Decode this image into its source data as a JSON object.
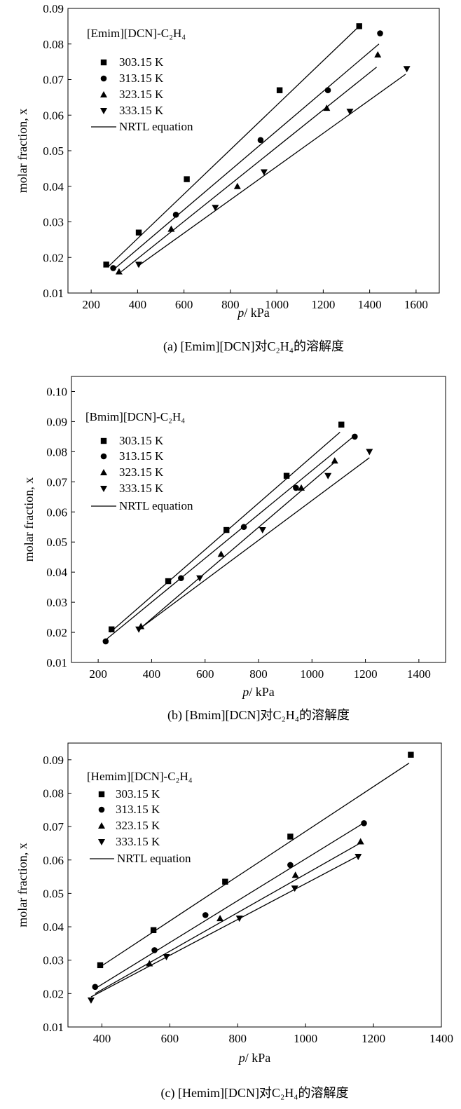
{
  "chart_data": [
    {
      "type": "scatter",
      "title": "[Emim][DCN]-C₂H₄",
      "caption": "(a) [Emim][DCN]对C₂H₄的溶解度",
      "xlabel_var": "p",
      "xlabel_unit": "/ kPa",
      "ylabel": "molar fraction, x",
      "xlim": [
        100,
        1700
      ],
      "ylim": [
        0.01,
        0.09
      ],
      "xticks": [
        200,
        400,
        600,
        800,
        1000,
        1200,
        1400,
        1600
      ],
      "yticks": [
        0.01,
        0.02,
        0.03,
        0.04,
        0.05,
        0.06,
        0.07,
        0.08,
        0.09
      ],
      "grid": false,
      "legend_position": "top-left",
      "series": [
        {
          "name": "303.15 K",
          "marker": "square",
          "x": [
            265,
            405,
            612,
            1012,
            1355
          ],
          "y": [
            0.018,
            0.027,
            0.042,
            0.067,
            0.085
          ]
        },
        {
          "name": "313.15 K",
          "marker": "circle",
          "x": [
            295,
            565,
            930,
            1220,
            1445
          ],
          "y": [
            0.017,
            0.032,
            0.053,
            0.067,
            0.083
          ]
        },
        {
          "name": "323.15 K",
          "marker": "triangle-up",
          "x": [
            320,
            545,
            830,
            1215,
            1435
          ],
          "y": [
            0.016,
            0.028,
            0.04,
            0.062,
            0.077
          ]
        },
        {
          "name": "333.15 K",
          "marker": "triangle-down",
          "x": [
            405,
            735,
            945,
            1315,
            1560
          ],
          "y": [
            0.018,
            0.034,
            0.044,
            0.061,
            0.073
          ]
        }
      ],
      "fit_label": "NRTL equation",
      "fit_lines": [
        {
          "x": [
            275,
            1355
          ],
          "y": [
            0.0175,
            0.085
          ]
        },
        {
          "x": [
            295,
            1440
          ],
          "y": [
            0.0165,
            0.08
          ]
        },
        {
          "x": [
            330,
            1430
          ],
          "y": [
            0.016,
            0.0735
          ]
        },
        {
          "x": [
            400,
            1555
          ],
          "y": [
            0.0175,
            0.0715
          ]
        }
      ]
    },
    {
      "type": "scatter",
      "title": "[Bmim][DCN]-C₂H₄",
      "caption": "(b) [Bmim][DCN]对C₂H₄的溶解度",
      "xlabel_var": "p",
      "xlabel_unit": "/ kPa",
      "ylabel": "molar fraction, x",
      "xlim": [
        100,
        1500
      ],
      "ylim": [
        0.01,
        0.105
      ],
      "xticks": [
        200,
        400,
        600,
        800,
        1000,
        1200,
        1400
      ],
      "yticks": [
        0.01,
        0.02,
        0.03,
        0.04,
        0.05,
        0.06,
        0.07,
        0.08,
        0.09,
        0.1
      ],
      "grid": false,
      "legend_position": "top-left",
      "series": [
        {
          "name": "303.15 K",
          "marker": "square",
          "x": [
            250,
            462,
            680,
            905,
            1110
          ],
          "y": [
            0.021,
            0.037,
            0.054,
            0.072,
            0.089
          ]
        },
        {
          "name": "313.15 K",
          "marker": "circle",
          "x": [
            228,
            510,
            745,
            940,
            1160
          ],
          "y": [
            0.017,
            0.038,
            0.055,
            0.068,
            0.085
          ]
        },
        {
          "name": "323.15 K",
          "marker": "triangle-up",
          "x": [
            360,
            660,
            960,
            1085
          ],
          "y": [
            0.022,
            0.046,
            0.068,
            0.077
          ]
        },
        {
          "name": "333.15 K",
          "marker": "triangle-down",
          "x": [
            352,
            580,
            815,
            1060,
            1215
          ],
          "y": [
            0.021,
            0.038,
            0.054,
            0.072,
            0.08
          ]
        }
      ],
      "fit_label": "NRTL equation",
      "fit_lines": [
        {
          "x": [
            245,
            1105
          ],
          "y": [
            0.02,
            0.0865
          ]
        },
        {
          "x": [
            228,
            1155
          ],
          "y": [
            0.0175,
            0.085
          ]
        },
        {
          "x": [
            360,
            1085
          ],
          "y": [
            0.0215,
            0.0765
          ]
        },
        {
          "x": [
            360,
            1215
          ],
          "y": [
            0.0215,
            0.078
          ]
        }
      ]
    },
    {
      "type": "scatter",
      "title": "[Hemim][DCN]-C₂H₄",
      "caption": "(c) [Hemim][DCN]对C₂H₄的溶解度",
      "xlabel_var": "p",
      "xlabel_unit": "/ kPa",
      "ylabel": "molar fraction, x",
      "xlim": [
        300,
        1400
      ],
      "ylim": [
        0.01,
        0.095
      ],
      "xticks": [
        400,
        600,
        800,
        1000,
        1200,
        1400
      ],
      "yticks": [
        0.01,
        0.02,
        0.03,
        0.04,
        0.05,
        0.06,
        0.07,
        0.08,
        0.09
      ],
      "grid": false,
      "legend_position": "top-left",
      "series": [
        {
          "name": "303.15 K",
          "marker": "square",
          "x": [
            395,
            552,
            763,
            955,
            1310
          ],
          "y": [
            0.0285,
            0.039,
            0.0535,
            0.067,
            0.0915
          ]
        },
        {
          "name": "313.15 K",
          "marker": "circle",
          "x": [
            380,
            555,
            705,
            955,
            1172
          ],
          "y": [
            0.022,
            0.033,
            0.0435,
            0.0585,
            0.071
          ]
        },
        {
          "name": "323.15 K",
          "marker": "triangle-up",
          "x": [
            540,
            748,
            970,
            1162
          ],
          "y": [
            0.029,
            0.0425,
            0.0555,
            0.0655
          ]
        },
        {
          "name": "333.15 K",
          "marker": "triangle-down",
          "x": [
            368,
            590,
            805,
            968,
            1155
          ],
          "y": [
            0.018,
            0.031,
            0.0425,
            0.0515,
            0.061
          ]
        }
      ],
      "fit_label": "NRTL equation",
      "fit_lines": [
        {
          "x": [
            395,
            1305
          ],
          "y": [
            0.028,
            0.089
          ]
        },
        {
          "x": [
            380,
            1170
          ],
          "y": [
            0.0215,
            0.071
          ]
        },
        {
          "x": [
            380,
            1160
          ],
          "y": [
            0.02,
            0.065
          ]
        },
        {
          "x": [
            368,
            1160
          ],
          "y": [
            0.019,
            0.0615
          ]
        }
      ]
    }
  ]
}
